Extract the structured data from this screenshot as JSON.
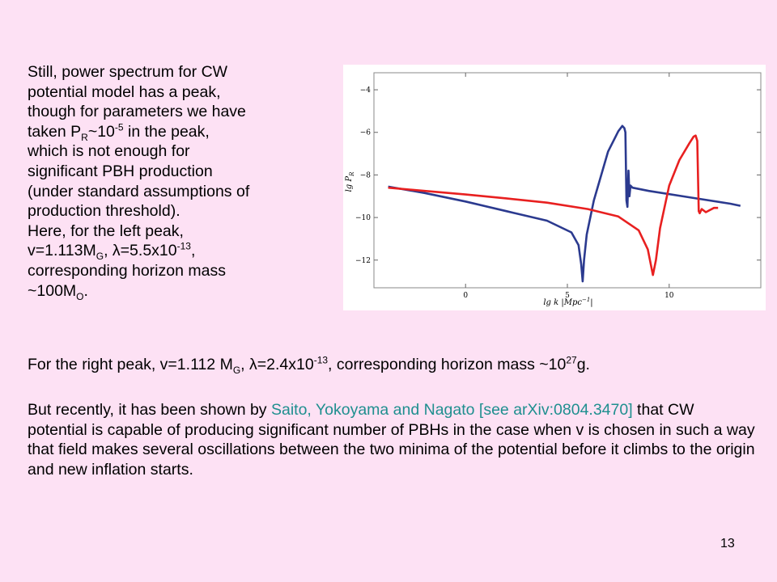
{
  "left_text": {
    "line1": "Still, power spectrum for CW",
    "line2": "potential model has a peak,",
    "line3": "though for parameters we have",
    "line4_a": "taken P",
    "line4_sub": "R",
    "line4_b": "~10",
    "line4_sup": "-5",
    "line4_c": " in the peak,",
    "line5": "which is not enough for",
    "line6": "significant PBH production",
    "line7": "(under standard assumptions of",
    "line8": "production threshold).",
    "line9": "Here, for the left peak,",
    "line10_a": "v=1.113M",
    "line10_sub": "G",
    "line10_b": ",  λ=5.5x10",
    "line10_sup": "-13",
    "line10_c": ",",
    "line11": "corresponding horizon mass",
    "line12_a": "~100M",
    "line12_sub": "O",
    "line12_b": "."
  },
  "right_peak": {
    "a": "For the right peak, v=1.112 M",
    "sub": "G",
    "b": ",  λ=2.4x10",
    "sup": "-13",
    "c": ", corresponding horizon mass ~10",
    "sup2": "27",
    "d": "g."
  },
  "recent": {
    "a": "But recently, it has been shown by ",
    "link": "Saito, Yokoyama and Nagato [see arXiv:0804.3470]",
    "b": " that CW potential is capable of producing significant number of PBHs in the case when v is chosen in such a way that  field makes several oscillations between the two minima of the potential before it climbs to the origin and new inflation starts."
  },
  "page_number": "13",
  "chart_data": {
    "type": "line",
    "xlabel": "lg k |Mpc",
    "xlabel_sup": "−1",
    "xlabel_tail": "|",
    "ylabel": "lg P",
    "ylabel_sub": "R",
    "xlim": [
      -4.5,
      14.5
    ],
    "ylim": [
      -13.3,
      -3.2
    ],
    "x_ticks": [
      0,
      5,
      10
    ],
    "x_tick_labels": [
      "0",
      "5",
      "10"
    ],
    "y_ticks": [
      -4,
      -6,
      -8,
      -10,
      -12
    ],
    "y_tick_labels": [
      "−4",
      "−6",
      "−8",
      "−10",
      "−12"
    ],
    "grid": false,
    "series": [
      {
        "color": "#2b3a8f",
        "x": [
          -3.8,
          -2,
          0,
          2,
          4,
          5.2,
          5.55,
          5.68,
          5.75,
          5.82,
          5.95,
          6.3,
          7,
          7.5,
          7.7,
          7.8,
          7.85,
          7.9,
          7.95,
          8.0,
          8.05,
          8.1,
          8.2,
          9,
          11,
          13,
          13.5
        ],
        "y": [
          -8.55,
          -8.85,
          -9.25,
          -9.7,
          -10.15,
          -10.7,
          -11.3,
          -12.2,
          -13.0,
          -12.0,
          -10.8,
          -9.2,
          -6.9,
          -5.95,
          -5.7,
          -5.8,
          -6.0,
          -9.2,
          -9.5,
          -7.8,
          -9.0,
          -8.5,
          -8.6,
          -8.75,
          -9.05,
          -9.35,
          -9.45
        ]
      },
      {
        "color": "#e82020",
        "x": [
          -3.8,
          -2,
          0,
          2,
          4,
          6,
          7.5,
          8.5,
          8.95,
          9.2,
          9.35,
          9.55,
          10,
          10.5,
          11,
          11.2,
          11.3,
          11.38,
          11.45,
          11.5,
          11.6,
          11.8,
          12.2,
          12.4
        ],
        "y": [
          -8.6,
          -8.75,
          -8.92,
          -9.1,
          -9.3,
          -9.6,
          -9.95,
          -10.6,
          -11.5,
          -12.7,
          -12.0,
          -10.5,
          -8.5,
          -7.3,
          -6.5,
          -6.2,
          -6.15,
          -6.4,
          -9.7,
          -9.8,
          -9.6,
          -9.75,
          -9.55,
          -9.55
        ]
      }
    ]
  }
}
